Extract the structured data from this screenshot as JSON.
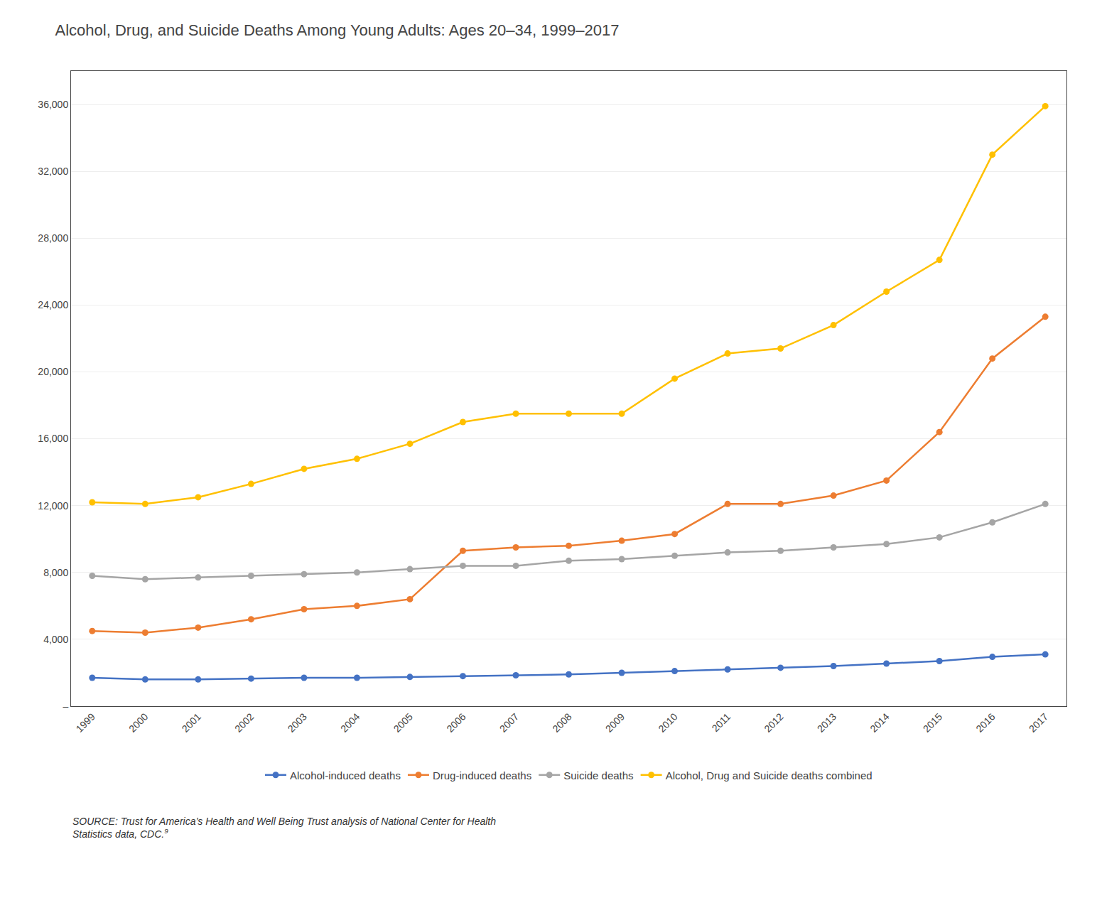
{
  "chart_data": {
    "type": "line",
    "title": "Alcohol, Drug, and Suicide Deaths Among Young Adults: Ages 20–34, 1999–2017",
    "x": [
      1999,
      2000,
      2001,
      2002,
      2003,
      2004,
      2005,
      2006,
      2007,
      2008,
      2009,
      2010,
      2011,
      2012,
      2013,
      2014,
      2015,
      2016,
      2017
    ],
    "series": [
      {
        "name": "Alcohol-induced deaths",
        "color": "#4472C4",
        "values": [
          1700,
          1600,
          1600,
          1650,
          1700,
          1700,
          1750,
          1800,
          1850,
          1900,
          2000,
          2100,
          2200,
          2300,
          2400,
          2550,
          2700,
          2950,
          3100
        ]
      },
      {
        "name": "Drug-induced deaths",
        "color": "#ED7D31",
        "values": [
          4500,
          4400,
          4700,
          5200,
          5800,
          6000,
          6400,
          9300,
          9500,
          9600,
          9900,
          10300,
          12100,
          12100,
          12600,
          13500,
          16400,
          20800,
          23300
        ]
      },
      {
        "name": "Suicide deaths",
        "color": "#A5A5A5",
        "values": [
          7800,
          7600,
          7700,
          7800,
          7900,
          8000,
          8200,
          8400,
          8400,
          8700,
          8800,
          9000,
          9200,
          9300,
          9500,
          9700,
          10100,
          11000,
          12100
        ]
      },
      {
        "name": "Alcohol, Drug and Suicide deaths combined",
        "color": "#FFC000",
        "values": [
          12200,
          12100,
          12500,
          13300,
          14200,
          14800,
          15700,
          17000,
          17500,
          17500,
          17500,
          19600,
          21100,
          21400,
          22800,
          24800,
          26700,
          33000,
          35900
        ]
      }
    ],
    "xlim": [
      1998.6,
      2017.4
    ],
    "xticks": [
      1999,
      2000,
      2001,
      2002,
      2003,
      2004,
      2005,
      2006,
      2007,
      2008,
      2009,
      2010,
      2011,
      2012,
      2013,
      2014,
      2015,
      2016,
      2017
    ],
    "ylim": [
      0,
      38000
    ],
    "yticks": [
      {
        "value": 0,
        "label": "–"
      },
      {
        "value": 4000,
        "label": "4,000"
      },
      {
        "value": 8000,
        "label": "8,000"
      },
      {
        "value": 12000,
        "label": "12,000"
      },
      {
        "value": 16000,
        "label": "16,000"
      },
      {
        "value": 20000,
        "label": "20,000"
      },
      {
        "value": 24000,
        "label": "24,000"
      },
      {
        "value": 28000,
        "label": "28,000"
      },
      {
        "value": 32000,
        "label": "32,000"
      },
      {
        "value": 36000,
        "label": "36,000"
      }
    ],
    "grid": "y",
    "legend": "bottom",
    "marker": "circle",
    "source": [
      "SOURCE: Trust for America’s Health and Well Being Trust analysis of National Center for Health",
      "Statistics data, CDC."
    ],
    "source_superscript": "9"
  }
}
